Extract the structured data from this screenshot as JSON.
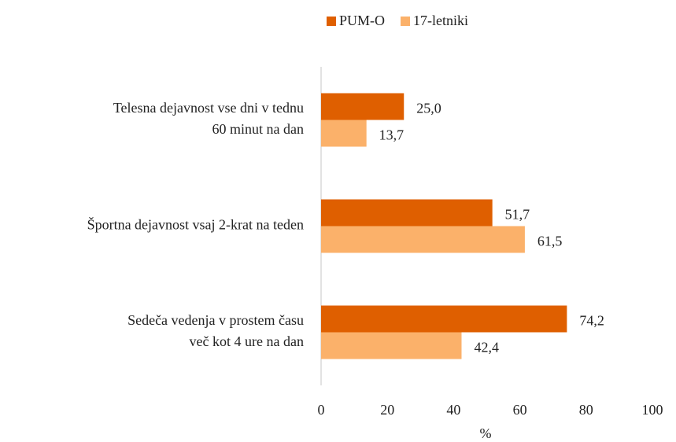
{
  "chart_data": {
    "type": "barh",
    "categories": [
      [
        "Telesna dejavnost vse dni v tednu",
        "60 minut na dan"
      ],
      [
        "Športna dejavnost vsaj 2-krat na teden"
      ],
      [
        "Sedeča vedenja v prostem času",
        "več kot 4 ure na dan"
      ]
    ],
    "series": [
      {
        "name": "PUM-O",
        "color": "#df5f00",
        "values": [
          25.0,
          51.7,
          74.2
        ],
        "value_labels": [
          "25,0",
          "51,7",
          "74,2"
        ]
      },
      {
        "name": "17-letniki",
        "color": "#fbb16a",
        "values": [
          13.7,
          61.5,
          42.4
        ],
        "value_labels": [
          "13,7",
          "61,5",
          "42,4"
        ]
      }
    ],
    "xlim": [
      0,
      100
    ],
    "xticks": [
      0,
      20,
      40,
      60,
      80,
      100
    ],
    "xlabel": "%",
    "legend": "top"
  }
}
